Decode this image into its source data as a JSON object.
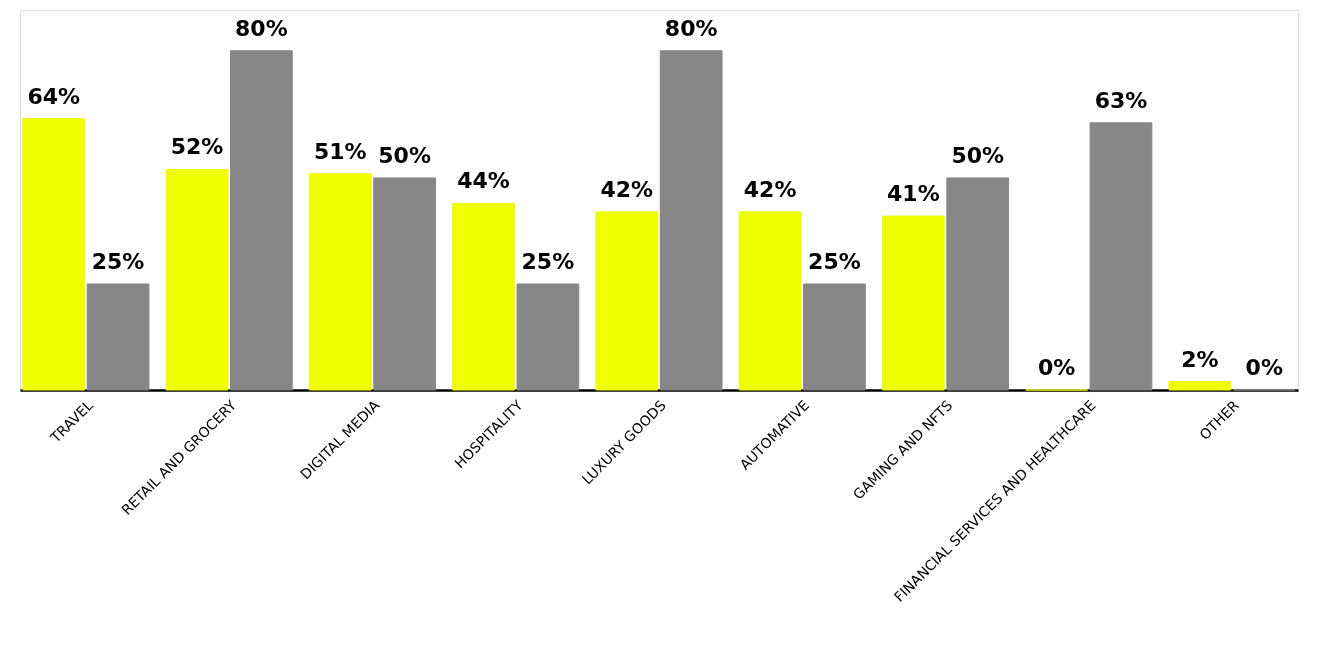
{
  "chart_data": {
    "type": "bar",
    "categories": [
      "TRAVEL",
      "RETAIL AND GROCERY",
      "DIGITAL MEDIA",
      "HOSPITALITY",
      "LUXURY GOODS",
      "AUTOMATIVE",
      "GAMING AND NFTS",
      "FINANCIAL SERVICES AND HEALTHCARE",
      "OTHER"
    ],
    "series": [
      {
        "color": "#eeff00",
        "values": [
          64,
          52,
          51,
          44,
          42,
          42,
          41,
          0,
          2
        ],
        "value_labels": [
          "64%",
          "52%",
          "51%",
          "44%",
          "42%",
          "42%",
          "41%",
          "0%",
          "2%"
        ]
      },
      {
        "color": "#878787",
        "values": [
          25,
          80,
          50,
          25,
          80,
          25,
          50,
          63,
          0
        ],
        "value_labels": [
          "25%",
          "80%",
          "50%",
          "25%",
          "80%",
          "25%",
          "50%",
          "63%",
          "0%"
        ]
      }
    ],
    "grid": false,
    "legend": false
  }
}
